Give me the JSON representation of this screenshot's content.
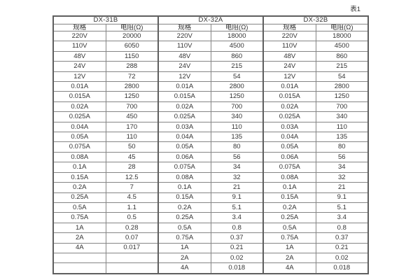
{
  "caption": "表1",
  "table": {
    "subheaders": {
      "spec": "规格",
      "resistance": "电阻(Ω)"
    },
    "groups": [
      {
        "name": "DX-31B"
      },
      {
        "name": "DX-32A"
      },
      {
        "name": "DX-32B"
      }
    ],
    "rows": [
      [
        "220V",
        "20000",
        "220V",
        "18000",
        "220V",
        "18000"
      ],
      [
        "110V",
        "6050",
        "110V",
        "4500",
        "110V",
        "4500"
      ],
      [
        "48V",
        "1150",
        "48V",
        "860",
        "48V",
        "860"
      ],
      [
        "24V",
        "288",
        "24V",
        "215",
        "24V",
        "215"
      ],
      [
        "12V",
        "72",
        "12V",
        "54",
        "12V",
        "54"
      ],
      [
        "0.01A",
        "2800",
        "0.01A",
        "2800",
        "0.01A",
        "2800"
      ],
      [
        "0.015A",
        "1250",
        "0.015A",
        "1250",
        "0.015A",
        "1250"
      ],
      [
        "0.02A",
        "700",
        "0.02A",
        "700",
        "0.02A",
        "700"
      ],
      [
        "0.025A",
        "450",
        "0.025A",
        "340",
        "0.025A",
        "340"
      ],
      [
        "0.04A",
        "170",
        "0.03A",
        "110",
        "0.03A",
        "110"
      ],
      [
        "0.05A",
        "110",
        "0.04A",
        "135",
        "0.04A",
        "135"
      ],
      [
        "0.075A",
        "50",
        "0.05A",
        "80",
        "0.05A",
        "80"
      ],
      [
        "0.08A",
        "45",
        "0.06A",
        "56",
        "0.06A",
        "56"
      ],
      [
        "0.1A",
        "28",
        "0.075A",
        "34",
        "0.075A",
        "34"
      ],
      [
        "0.15A",
        "12.5",
        "0.08A",
        "32",
        "0.08A",
        "32"
      ],
      [
        "0.2A",
        "7",
        "0.1A",
        "21",
        "0.1A",
        "21"
      ],
      [
        "0.25A",
        "4.5",
        "0.15A",
        "9.1",
        "0.15A",
        "9.1"
      ],
      [
        "0.5A",
        "1.1",
        "0.2A",
        "5.1",
        "0.2A",
        "5.1"
      ],
      [
        "0.75A",
        "0.5",
        "0.25A",
        "3.4",
        "0.25A",
        "3.4"
      ],
      [
        "1A",
        "0.28",
        "0.5A",
        "0.8",
        "0.5A",
        "0.8"
      ],
      [
        "2A",
        "0.07",
        "0.75A",
        "0.37",
        "0.75A",
        "0.37"
      ],
      [
        "4A",
        "0.017",
        "1A",
        "0.21",
        "1A",
        "0.21"
      ],
      [
        "",
        "",
        "2A",
        "0.02",
        "2A",
        "0.02"
      ],
      [
        "",
        "",
        "4A",
        "0.018",
        "4A",
        "0.018"
      ]
    ]
  },
  "chart_data": {
    "type": "table",
    "title": "表1",
    "column_groups": [
      "DX-31B",
      "DX-32A",
      "DX-32B"
    ],
    "columns_per_group": [
      "规格",
      "电阻(Ω)"
    ],
    "series": [
      {
        "name": "DX-31B",
        "spec": [
          "220V",
          "110V",
          "48V",
          "24V",
          "12V",
          "0.01A",
          "0.015A",
          "0.02A",
          "0.025A",
          "0.04A",
          "0.05A",
          "0.075A",
          "0.08A",
          "0.1A",
          "0.15A",
          "0.2A",
          "0.25A",
          "0.5A",
          "0.75A",
          "1A",
          "2A",
          "4A"
        ],
        "resistance_ohm": [
          20000,
          6050,
          1150,
          288,
          72,
          2800,
          1250,
          700,
          450,
          170,
          110,
          50,
          45,
          28,
          12.5,
          7,
          4.5,
          1.1,
          0.5,
          0.28,
          0.07,
          0.017
        ]
      },
      {
        "name": "DX-32A",
        "spec": [
          "220V",
          "110V",
          "48V",
          "24V",
          "12V",
          "0.01A",
          "0.015A",
          "0.02A",
          "0.025A",
          "0.03A",
          "0.04A",
          "0.05A",
          "0.06A",
          "0.075A",
          "0.08A",
          "0.1A",
          "0.15A",
          "0.2A",
          "0.25A",
          "0.5A",
          "0.75A",
          "1A",
          "2A",
          "4A"
        ],
        "resistance_ohm": [
          18000,
          4500,
          860,
          215,
          54,
          2800,
          1250,
          700,
          340,
          110,
          135,
          80,
          56,
          34,
          32,
          21,
          9.1,
          5.1,
          3.4,
          0.8,
          0.37,
          0.21,
          0.02,
          0.018
        ]
      },
      {
        "name": "DX-32B",
        "spec": [
          "220V",
          "110V",
          "48V",
          "24V",
          "12V",
          "0.01A",
          "0.015A",
          "0.02A",
          "0.025A",
          "0.03A",
          "0.04A",
          "0.05A",
          "0.06A",
          "0.075A",
          "0.08A",
          "0.1A",
          "0.15A",
          "0.2A",
          "0.25A",
          "0.5A",
          "0.75A",
          "1A",
          "2A",
          "4A"
        ],
        "resistance_ohm": [
          18000,
          4500,
          860,
          215,
          54,
          2800,
          1250,
          700,
          340,
          110,
          135,
          80,
          56,
          34,
          32,
          21,
          9.1,
          5.1,
          3.4,
          0.8,
          0.37,
          0.21,
          0.02,
          0.018
        ]
      }
    ]
  }
}
